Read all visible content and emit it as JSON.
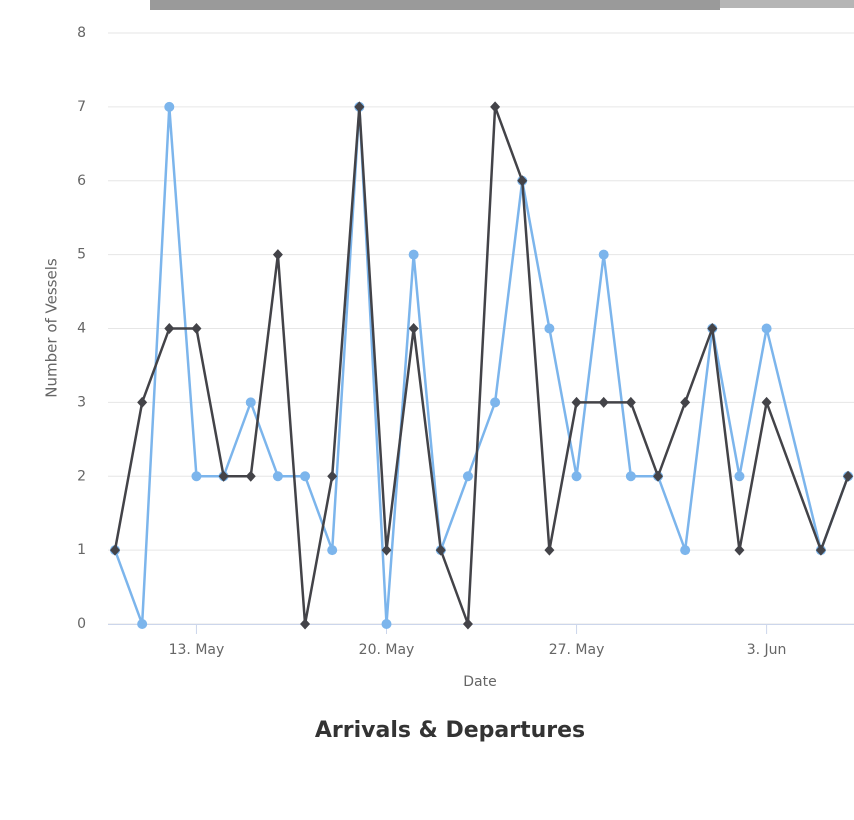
{
  "chart_data": {
    "type": "line",
    "title": "Arrivals & Departures",
    "x_label": "Date",
    "y_label": "Number of Vessels",
    "x": [
      "10. May",
      "11. May",
      "12. May",
      "13. May",
      "14. May",
      "15. May",
      "16. May",
      "17. May",
      "18. May",
      "19. May",
      "20. May",
      "21. May",
      "22. May",
      "23. May",
      "24. May",
      "25. May",
      "26. May",
      "27. May",
      "28. May",
      "29. May",
      "30. May",
      "31. May",
      "1. Jun",
      "2. Jun",
      "3. Jun",
      "5. Jun",
      "6. Jun"
    ],
    "xticks": [
      "13. May",
      "20. May",
      "27. May",
      "3. Jun"
    ],
    "series": [
      {
        "color": "#7cb5ec",
        "marker": "circle",
        "values": [
          1,
          0,
          7,
          2,
          2,
          3,
          2,
          2,
          1,
          7,
          0,
          5,
          1,
          2,
          3,
          6,
          4,
          2,
          5,
          2,
          2,
          1,
          4,
          2,
          4,
          1,
          2
        ]
      },
      {
        "color": "#434348",
        "marker": "diamond",
        "values": [
          1,
          3,
          4,
          4,
          2,
          2,
          5,
          0,
          2,
          7,
          1,
          4,
          1,
          0,
          7,
          6,
          1,
          3,
          3,
          3,
          2,
          3,
          4,
          1,
          3,
          1,
          2
        ]
      }
    ],
    "ylim": [
      0,
      8
    ],
    "yticks": [
      0,
      1,
      2,
      3,
      4,
      5,
      6,
      7,
      8
    ],
    "grid": true
  }
}
